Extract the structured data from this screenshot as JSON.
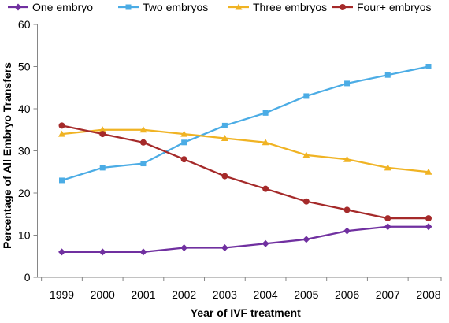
{
  "chart_data": {
    "type": "line",
    "title": "",
    "xlabel": "Year of IVF treatment",
    "ylabel": "Percentage of All Embryo Transfers",
    "x": [
      "1999",
      "2000",
      "2001",
      "2002",
      "2003",
      "2004",
      "2005",
      "2006",
      "2007",
      "2008"
    ],
    "ylim": [
      0,
      60
    ],
    "yticks": [
      0,
      10,
      20,
      30,
      40,
      50,
      60
    ],
    "grid": false,
    "legend_position": "top",
    "series": [
      {
        "name": "One embryo",
        "color": "#7030A0",
        "marker": "diamond",
        "values": [
          6,
          6,
          6,
          7,
          7,
          8,
          9,
          11,
          12,
          12
        ]
      },
      {
        "name": "Two embryos",
        "color": "#4BACE5",
        "marker": "square",
        "values": [
          23,
          26,
          27,
          32,
          36,
          39,
          43,
          46,
          48,
          50
        ]
      },
      {
        "name": "Three embryos",
        "color": "#F0B323",
        "marker": "triangle",
        "values": [
          34,
          35,
          35,
          34,
          33,
          32,
          29,
          28,
          26,
          25
        ]
      },
      {
        "name": "Four+ embryos",
        "color": "#A52A2A",
        "marker": "circle",
        "values": [
          36,
          34,
          32,
          28,
          24,
          21,
          18,
          16,
          14,
          14
        ]
      }
    ]
  }
}
